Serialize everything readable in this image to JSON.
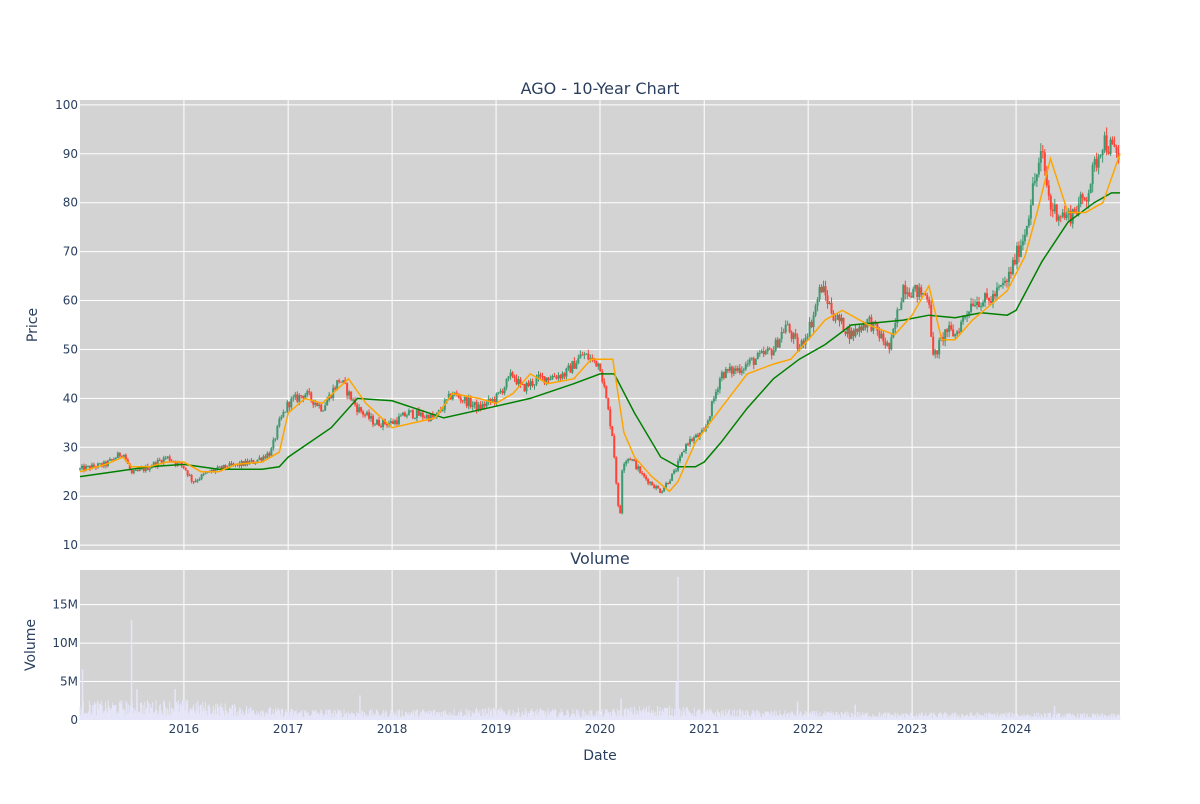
{
  "chart_data": [
    {
      "type": "candlestick",
      "title": "AGO - 10-Year Chart",
      "ylabel": "Price",
      "xlim": [
        "2015-01-01",
        "2024-12-31"
      ],
      "ylim": [
        9,
        101
      ],
      "yticks": [
        10,
        20,
        30,
        40,
        50,
        60,
        70,
        80,
        90,
        100
      ],
      "grid": true,
      "colors": {
        "up": "#3d9970",
        "down": "#ff4136",
        "ma_short": "#ffa500",
        "ma_long": "#008000",
        "background": "#d3d3d3"
      },
      "close_series": {
        "x": [
          "2015-01-01",
          "2015-04-01",
          "2015-06-01",
          "2015-07-01",
          "2015-09-01",
          "2015-11-01",
          "2016-01-01",
          "2016-02-01",
          "2016-04-01",
          "2016-06-01",
          "2016-09-01",
          "2016-11-01",
          "2016-12-01",
          "2017-01-01",
          "2017-03-01",
          "2017-05-01",
          "2017-07-01",
          "2017-09-01",
          "2017-11-01",
          "2018-01-01",
          "2018-03-01",
          "2018-06-01",
          "2018-08-01",
          "2018-11-01",
          "2019-01-01",
          "2019-03-01",
          "2019-04-01",
          "2019-06-01",
          "2019-09-01",
          "2019-11-01",
          "2020-01-01",
          "2020-02-15",
          "2020-03-10",
          "2020-03-20",
          "2020-04-15",
          "2020-06-01",
          "2020-08-01",
          "2020-09-20",
          "2020-11-01",
          "2021-01-01",
          "2021-03-01",
          "2021-05-01",
          "2021-07-01",
          "2021-09-01",
          "2021-10-15",
          "2021-12-01",
          "2022-01-15",
          "2022-02-15",
          "2022-04-01",
          "2022-06-01",
          "2022-08-01",
          "2022-10-15",
          "2022-12-01",
          "2023-01-01",
          "2023-03-01",
          "2023-03-15",
          "2023-05-01",
          "2023-06-01",
          "2023-08-01",
          "2023-10-01",
          "2023-12-01",
          "2024-02-01",
          "2024-03-01",
          "2024-04-01",
          "2024-05-01",
          "2024-07-01",
          "2024-09-01",
          "2024-11-01",
          "2024-12-31"
        ],
        "values": [
          25.5,
          26.5,
          29,
          24.5,
          26,
          28,
          26,
          23,
          25,
          26,
          27,
          29,
          35,
          39,
          41,
          38,
          44,
          38,
          35,
          35,
          37,
          36,
          41,
          38,
          40,
          45,
          42,
          44,
          45,
          49,
          47,
          32,
          14,
          27,
          28,
          24,
          21,
          25,
          31,
          33,
          45,
          46,
          48,
          50,
          55,
          50,
          56,
          63,
          57,
          53,
          56,
          50,
          63,
          62,
          61,
          48,
          54,
          53,
          60,
          60,
          64,
          74,
          83,
          90,
          79,
          77,
          81,
          93,
          89
        ]
      },
      "ma_short": {
        "x": [
          "2015-01-01",
          "2015-04-01",
          "2015-06-01",
          "2015-07-01",
          "2015-09-01",
          "2015-11-01",
          "2016-01-01",
          "2016-03-01",
          "2016-05-01",
          "2016-07-01",
          "2016-10-01",
          "2016-12-01",
          "2017-01-01",
          "2017-03-01",
          "2017-05-01",
          "2017-08-01",
          "2017-10-01",
          "2018-01-01",
          "2018-06-01",
          "2018-08-01",
          "2018-11-01",
          "2019-01-01",
          "2019-03-01",
          "2019-05-01",
          "2019-07-01",
          "2019-10-01",
          "2019-12-01",
          "2020-02-15",
          "2020-03-25",
          "2020-05-01",
          "2020-07-01",
          "2020-09-01",
          "2020-10-01",
          "2020-12-01",
          "2021-03-01",
          "2021-06-01",
          "2021-09-01",
          "2021-11-01",
          "2022-01-01",
          "2022-03-01",
          "2022-05-01",
          "2022-08-01",
          "2022-11-01",
          "2023-01-01",
          "2023-03-01",
          "2023-04-15",
          "2023-06-01",
          "2023-08-01",
          "2023-10-01",
          "2023-12-01",
          "2024-02-01",
          "2024-03-15",
          "2024-05-01",
          "2024-07-01",
          "2024-09-01",
          "2024-11-01",
          "2024-12-31"
        ],
        "values": [
          25,
          26.5,
          28,
          26,
          26,
          27,
          27,
          25,
          25,
          26.5,
          27,
          29,
          37,
          40,
          39,
          44,
          39,
          34,
          36,
          41,
          40,
          39,
          41,
          45,
          43,
          44,
          48,
          48,
          33,
          28,
          24,
          21,
          23,
          31,
          38,
          45,
          47,
          48,
          52,
          56,
          58,
          55,
          53,
          57,
          63,
          52,
          52,
          56,
          59,
          62,
          69,
          78,
          89,
          78,
          78,
          80,
          90
        ]
      },
      "ma_long": {
        "x": [
          "2015-01-01",
          "2015-05-01",
          "2015-09-01",
          "2016-01-01",
          "2016-05-01",
          "2016-10-01",
          "2016-12-01",
          "2017-01-01",
          "2017-06-01",
          "2017-09-01",
          "2018-01-01",
          "2018-07-01",
          "2018-12-01",
          "2019-05-01",
          "2019-10-01",
          "2020-01-01",
          "2020-02-20",
          "2020-05-01",
          "2020-08-01",
          "2020-10-01",
          "2020-12-01",
          "2021-01-01",
          "2021-03-01",
          "2021-06-01",
          "2021-09-01",
          "2021-12-01",
          "2022-03-01",
          "2022-06-01",
          "2022-09-01",
          "2022-12-01",
          "2023-03-01",
          "2023-06-01",
          "2023-09-01",
          "2023-12-01",
          "2024-01-01",
          "2024-04-01",
          "2024-07-01",
          "2024-10-01",
          "2024-12-01",
          "2024-12-31"
        ],
        "values": [
          24,
          25,
          26,
          26.5,
          25.5,
          25.5,
          26,
          28,
          34,
          40,
          39.5,
          36,
          38,
          40,
          43,
          45,
          45,
          37,
          28,
          26,
          26,
          27,
          31,
          38,
          44,
          48,
          51,
          55,
          55.5,
          56,
          57,
          56.5,
          57.5,
          57,
          58,
          68,
          76,
          80,
          82,
          82
        ]
      }
    },
    {
      "type": "bar",
      "title": "Volume",
      "ylabel": "Volume",
      "xlabel": "Date",
      "xticks": [
        "2016",
        "2017",
        "2018",
        "2019",
        "2020",
        "2021",
        "2022",
        "2023",
        "2024"
      ],
      "yticks": [
        "0",
        "5M",
        "10M",
        "15M"
      ],
      "ytick_values": [
        0,
        5000000,
        10000000,
        15000000
      ],
      "ylim": [
        0,
        19500000
      ],
      "color": "#e6e6fa",
      "baseline_volume": [
        [
          0,
          1500000
        ],
        [
          0.1,
          1600000
        ],
        [
          0.2,
          900000
        ],
        [
          0.3,
          800000
        ],
        [
          0.4,
          1000000
        ],
        [
          0.5,
          800000
        ],
        [
          0.55,
          1200000
        ],
        [
          0.6,
          900000
        ],
        [
          0.7,
          700000
        ],
        [
          0.8,
          600000
        ],
        [
          0.9,
          600000
        ],
        [
          1,
          500000
        ]
      ],
      "spikes": [
        {
          "x": "2015-01-10",
          "value": 6600000
        },
        {
          "x": "2015-07-01",
          "value": 13000000
        },
        {
          "x": "2015-07-20",
          "value": 4000000
        },
        {
          "x": "2015-12-01",
          "value": 4000000
        },
        {
          "x": "2017-09-10",
          "value": 3200000
        },
        {
          "x": "2020-03-15",
          "value": 2800000
        },
        {
          "x": "2020-09-25",
          "value": 5000000
        },
        {
          "x": "2020-10-01",
          "value": 18600000
        },
        {
          "x": "2021-11-25",
          "value": 2400000
        },
        {
          "x": "2022-06-15",
          "value": 2000000
        },
        {
          "x": "2024-05-15",
          "value": 1800000
        }
      ]
    }
  ]
}
